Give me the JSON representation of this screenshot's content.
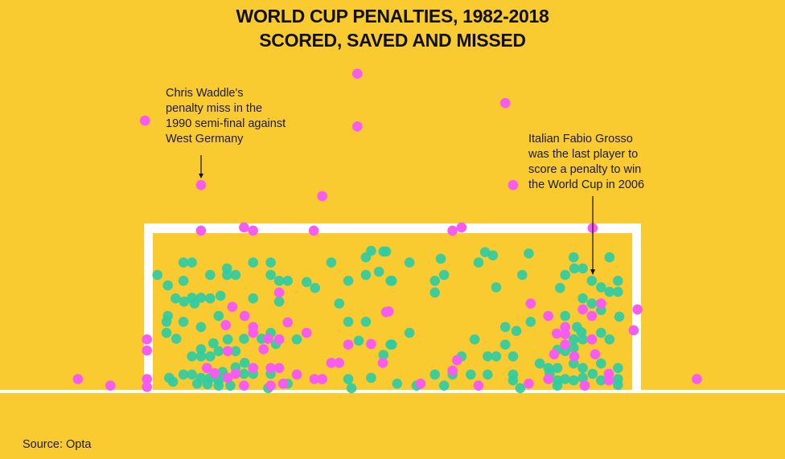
{
  "chart_data": {
    "type": "scatter",
    "title": [
      "WORLD CUP PENALTIES, 1982-2018",
      "SCORED, SAVED AND MISSED"
    ],
    "xlabel": "",
    "ylabel": "",
    "grid": false,
    "legend": "none",
    "goal": {
      "width": 7.32,
      "height": 2.44
    },
    "series": [
      {
        "color": "#2fcca2",
        "points": [
          [
            0.07,
            1.79
          ],
          [
            0.47,
            1.98
          ],
          [
            0.6,
            1.98
          ],
          [
            1.54,
            1.98
          ],
          [
            1.81,
            1.98
          ],
          [
            0.23,
            1.63
          ],
          [
            0.47,
            1.7
          ],
          [
            0.88,
            1.79
          ],
          [
            1.14,
            1.89
          ],
          [
            1.14,
            1.79
          ],
          [
            1.27,
            1.79
          ],
          [
            1.81,
            1.79
          ],
          [
            1.94,
            1.7
          ],
          [
            2.07,
            1.7
          ],
          [
            2.36,
            1.68
          ],
          [
            2.49,
            1.59
          ],
          [
            2.74,
            1.98
          ],
          [
            3.0,
            1.7
          ],
          [
            3.27,
            2.06
          ],
          [
            3.35,
            2.16
          ],
          [
            3.54,
            2.15
          ],
          [
            3.27,
            1.79
          ],
          [
            3.47,
            1.84
          ],
          [
            3.65,
            1.7
          ],
          [
            0.35,
            1.43
          ],
          [
            0.48,
            1.38
          ],
          [
            0.6,
            1.44
          ],
          [
            0.74,
            1.44
          ],
          [
            0.88,
            1.43
          ],
          [
            1.04,
            1.47
          ],
          [
            0.64,
            1.35
          ],
          [
            1.54,
            1.43
          ],
          [
            1.94,
            1.38
          ],
          [
            2.86,
            1.35
          ],
          [
            0.23,
            1.16
          ],
          [
            0.21,
            1.07
          ],
          [
            0.47,
            1.07
          ],
          [
            0.74,
            0.99
          ],
          [
            1.01,
            1.16
          ],
          [
            3.0,
            1.07
          ],
          [
            3.27,
            1.07
          ],
          [
            0.21,
            0.9
          ],
          [
            0.36,
            0.81
          ],
          [
            1.15,
            0.8
          ],
          [
            1.4,
            0.81
          ],
          [
            1.67,
            0.81
          ],
          [
            1.81,
            0.9
          ],
          [
            1.89,
            0.73
          ],
          [
            2.21,
            0.8
          ],
          [
            3.16,
            0.78
          ],
          [
            3.65,
            0.72
          ],
          [
            0.93,
            0.74
          ],
          [
            1.01,
            0.62
          ],
          [
            0.74,
            0.65
          ],
          [
            0.6,
            0.54
          ],
          [
            0.74,
            0.54
          ],
          [
            0.88,
            0.54
          ],
          [
            1.27,
            0.62
          ],
          [
            1.41,
            0.44
          ],
          [
            3.54,
            0.56
          ],
          [
            0.25,
            0.21
          ],
          [
            0.47,
            0.26
          ],
          [
            0.6,
            0.26
          ],
          [
            0.74,
            0.21
          ],
          [
            0.88,
            0.21
          ],
          [
            1.01,
            0.17
          ],
          [
            1.07,
            0.3
          ],
          [
            0.31,
            0.15
          ],
          [
            0.68,
            0.12
          ],
          [
            0.84,
            0.11
          ],
          [
            1.01,
            0.09
          ],
          [
            1.19,
            0.09
          ],
          [
            1.27,
            0.37
          ],
          [
            1.4,
            0.27
          ],
          [
            1.54,
            0.27
          ],
          [
            1.81,
            0.27
          ],
          [
            2.07,
            0.12
          ],
          [
            3.0,
            0.19
          ],
          [
            3.05,
            0.05
          ],
          [
            3.35,
            0.21
          ],
          [
            1.77,
            0.05
          ],
          [
            3.58,
            2.15
          ],
          [
            3.94,
            1.98
          ],
          [
            4.42,
            2.04
          ],
          [
            5.1,
            2.14
          ],
          [
            5.22,
            2.09
          ],
          [
            5.0,
            1.98
          ],
          [
            5.77,
            2.12
          ],
          [
            3.67,
            1.7
          ],
          [
            4.33,
            1.7
          ],
          [
            4.47,
            1.79
          ],
          [
            4.33,
            1.52
          ],
          [
            5.27,
            1.6
          ],
          [
            5.67,
            1.79
          ],
          [
            6.46,
            2.06
          ],
          [
            7.01,
            2.06
          ],
          [
            6.33,
            1.79
          ],
          [
            6.47,
            1.89
          ],
          [
            6.6,
            1.89
          ],
          [
            6.74,
            1.7
          ],
          [
            6.88,
            1.6
          ],
          [
            7.01,
            1.53
          ],
          [
            7.14,
            1.7
          ],
          [
            7.14,
            1.53
          ],
          [
            6.25,
            1.59
          ],
          [
            6.6,
            1.43
          ],
          [
            6.74,
            1.35
          ],
          [
            6.88,
            1.25
          ],
          [
            7.16,
            1.15
          ],
          [
            6.33,
            1.16
          ],
          [
            3.94,
            0.9
          ],
          [
            5.41,
            0.99
          ],
          [
            5.58,
            0.93
          ],
          [
            5.8,
            1.07
          ],
          [
            4.94,
            0.8
          ],
          [
            3.67,
            0.72
          ],
          [
            5.41,
            0.72
          ],
          [
            6.88,
            0.9
          ],
          [
            7.01,
            0.8
          ],
          [
            6.51,
            0.99
          ],
          [
            6.58,
            0.91
          ],
          [
            6.46,
            0.8
          ],
          [
            6.6,
            0.8
          ],
          [
            6.21,
            0.64
          ],
          [
            6.33,
            0.62
          ],
          [
            6.46,
            0.67
          ],
          [
            4.74,
            0.54
          ],
          [
            5.14,
            0.54
          ],
          [
            5.27,
            0.54
          ],
          [
            5.53,
            0.54
          ],
          [
            5.94,
            0.43
          ],
          [
            6.07,
            0.36
          ],
          [
            6.21,
            0.36
          ],
          [
            6.46,
            0.43
          ],
          [
            6.6,
            0.36
          ],
          [
            6.88,
            0.43
          ],
          [
            7.14,
            0.36
          ],
          [
            4.33,
            0.26
          ],
          [
            4.6,
            0.26
          ],
          [
            4.88,
            0.26
          ],
          [
            5.14,
            0.26
          ],
          [
            5.53,
            0.26
          ],
          [
            5.53,
            0.17
          ],
          [
            3.75,
            0.12
          ],
          [
            4.05,
            0.09
          ],
          [
            4.47,
            0.09
          ],
          [
            5.64,
            0.05
          ],
          [
            6.09,
            0.27
          ],
          [
            6.21,
            0.17
          ],
          [
            6.33,
            0.19
          ],
          [
            6.46,
            0.17
          ],
          [
            6.6,
            0.21
          ],
          [
            6.75,
            0.27
          ],
          [
            6.88,
            0.17
          ],
          [
            7.14,
            0.19
          ],
          [
            7.14,
            0.1
          ],
          [
            6.21,
            0.09
          ]
        ]
      },
      {
        "color": "#f65cf0",
        "points": [
          [
            -0.12,
            4.16
          ],
          [
            0.74,
            3.17
          ],
          [
            3.14,
            4.88
          ],
          [
            3.14,
            4.07
          ],
          [
            5.41,
            4.43
          ],
          [
            2.6,
            3.0
          ],
          [
            5.53,
            3.17
          ],
          [
            -1.15,
            0.19
          ],
          [
            -0.65,
            0.09
          ],
          [
            8.35,
            0.19
          ],
          [
            7.44,
            1.26
          ],
          [
            7.38,
            0.94
          ],
          [
            0.74,
            2.47
          ],
          [
            1.4,
            2.52
          ],
          [
            1.54,
            2.47
          ],
          [
            2.47,
            2.47
          ],
          [
            4.6,
            2.47
          ],
          [
            4.74,
            2.52
          ],
          [
            6.75,
            2.51
          ],
          [
            -0.09,
            0.8
          ],
          [
            -0.09,
            0.63
          ],
          [
            -0.09,
            0.19
          ],
          [
            -0.09,
            0.07
          ],
          [
            1.22,
            1.3
          ],
          [
            1.41,
            1.16
          ],
          [
            1.12,
            1.02
          ],
          [
            1.54,
            0.99
          ],
          [
            1.54,
            0.9
          ],
          [
            2.07,
            1.06
          ],
          [
            2.36,
            0.9
          ],
          [
            1.94,
            1.52
          ],
          [
            1.77,
            0.81
          ],
          [
            1.94,
            0.8
          ],
          [
            1.7,
            0.65
          ],
          [
            1.15,
            0.62
          ],
          [
            3.58,
            1.22
          ],
          [
            3.0,
            0.72
          ],
          [
            3.35,
            0.73
          ],
          [
            2.74,
            0.44
          ],
          [
            2.86,
            0.44
          ],
          [
            3.53,
            0.44
          ],
          [
            0.83,
            0.36
          ],
          [
            0.95,
            0.28
          ],
          [
            1.15,
            0.21
          ],
          [
            1.27,
            0.27
          ],
          [
            1.54,
            0.36
          ],
          [
            1.81,
            0.36
          ],
          [
            1.94,
            0.36
          ],
          [
            2.21,
            0.26
          ],
          [
            1.4,
            0.09
          ],
          [
            1.81,
            0.09
          ],
          [
            2.0,
            0.12
          ],
          [
            2.48,
            0.19
          ],
          [
            2.6,
            0.19
          ],
          [
            5.8,
            1.35
          ],
          [
            6.07,
            1.16
          ],
          [
            6.6,
            1.26
          ],
          [
            6.88,
            1.35
          ],
          [
            6.74,
            1.16
          ],
          [
            6.2,
            0.89
          ],
          [
            6.33,
            0.99
          ],
          [
            6.33,
            0.88
          ],
          [
            6.33,
            0.72
          ],
          [
            6.74,
            0.8
          ],
          [
            6.16,
            0.57
          ],
          [
            6.47,
            0.54
          ],
          [
            6.79,
            0.57
          ],
          [
            4.67,
            0.48
          ],
          [
            4.6,
            0.32
          ],
          [
            4.11,
            0.12
          ],
          [
            5.0,
            0.09
          ],
          [
            5.77,
            0.12
          ],
          [
            6.07,
            0.19
          ],
          [
            6.63,
            0.09
          ],
          [
            7.0,
            0.27
          ],
          [
            7.0,
            0.17
          ],
          [
            3.62,
            1.23
          ]
        ]
      }
    ],
    "annotations": [
      {
        "lines": [
          "Chris Waddle's",
          "penalty miss in the",
          "1990 semi-final against",
          "West Germany"
        ],
        "point": [
          0.74,
          3.17
        ]
      },
      {
        "lines": [
          "Italian Fabio Grosso",
          "was the last player to",
          "score a penalty to win",
          "the World Cup in 2006"
        ],
        "point": [
          6.74,
          1.7
        ]
      }
    ],
    "source": "Source: Opta"
  },
  "colors": {
    "background": "#f9cb30",
    "goal": "#ffffff",
    "text": "#111111"
  }
}
